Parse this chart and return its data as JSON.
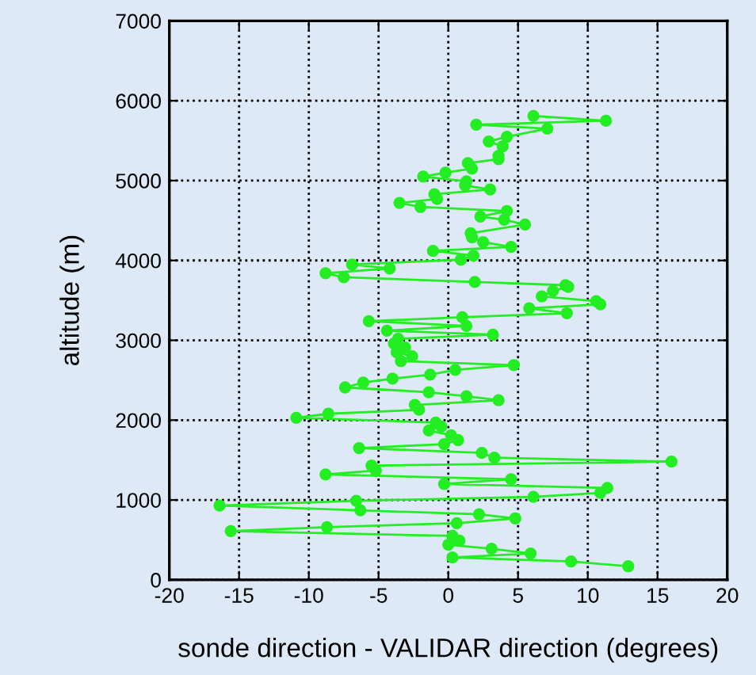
{
  "chart_data": {
    "type": "line",
    "xlabel": "sonde direction - VALIDAR direction (degrees)",
    "ylabel": "altitude (m)",
    "xlim": [
      -20,
      20
    ],
    "xticks": [
      -20,
      -15,
      -10,
      -5,
      0,
      5,
      10,
      15,
      20
    ],
    "ylim": [
      0,
      7000
    ],
    "yticks": [
      0,
      1000,
      2000,
      3000,
      4000,
      5000,
      6000,
      7000
    ],
    "grid": true,
    "marker": "circle",
    "line_style": "solid",
    "series": [
      {
        "color": "#22ee22",
        "x": [
          12.9,
          8.8,
          0.3,
          5.9,
          3.1,
          0,
          0.8,
          0.3,
          -15.6,
          -8.7,
          0.6,
          4.8,
          2.2,
          -6.3,
          -16.4,
          -6.6,
          6.1,
          10.9,
          11.4,
          -0.3,
          4.5,
          -8.8,
          -5.2,
          -5.5,
          16.0,
          3.3,
          2.4,
          -6.4,
          -0.3,
          0.7,
          0.2,
          -1.4,
          -0.5,
          -0.9,
          -10.9,
          -8.6,
          -2.1,
          -2.4,
          3.6,
          1.3,
          -1.4,
          -7.4,
          -6.1,
          -4.0,
          -1.3,
          0.5,
          4.7,
          -3.4,
          -2.6,
          -3.7,
          -3.1,
          -3.9,
          -3.6,
          3.2,
          -4.4,
          1.3,
          -5.7,
          1.0,
          8.5,
          5.8,
          10.9,
          10.6,
          6.7,
          7.5,
          8.6,
          8.4,
          1.9,
          -7.5,
          -8.8,
          -4.2,
          -6.9,
          0.9,
          1.8,
          -1.1,
          4.5,
          2.5,
          1.7,
          1.6,
          5.5,
          4.0,
          2.3,
          4.2,
          -2.0,
          -3.5,
          -0.8,
          -1.0,
          3.0,
          1.2,
          1.3,
          -1.8,
          -0.2,
          1.7,
          1.4,
          3.6,
          3.6,
          3.9,
          2.9,
          4.2,
          7.1,
          2.0,
          11.3,
          6.1
        ],
        "values": [
          170,
          230,
          280,
          330,
          390,
          440,
          490,
          550,
          610,
          660,
          710,
          770,
          820,
          870,
          930,
          990,
          1040,
          1090,
          1150,
          1200,
          1260,
          1320,
          1370,
          1430,
          1480,
          1530,
          1590,
          1650,
          1700,
          1750,
          1810,
          1870,
          1920,
          1970,
          2030,
          2080,
          2130,
          2190,
          2250,
          2300,
          2350,
          2410,
          2470,
          2520,
          2570,
          2630,
          2690,
          2740,
          2800,
          2850,
          2910,
          2960,
          3020,
          3070,
          3120,
          3180,
          3240,
          3290,
          3340,
          3400,
          3450,
          3490,
          3550,
          3620,
          3670,
          3690,
          3730,
          3790,
          3840,
          3900,
          3950,
          4010,
          4060,
          4120,
          4170,
          4230,
          4290,
          4340,
          4450,
          4510,
          4550,
          4620,
          4670,
          4720,
          4770,
          4830,
          4890,
          4940,
          4990,
          5050,
          5100,
          5150,
          5220,
          5270,
          5310,
          5430,
          5490,
          5550,
          5650,
          5700,
          5750,
          5810
        ]
      }
    ]
  }
}
